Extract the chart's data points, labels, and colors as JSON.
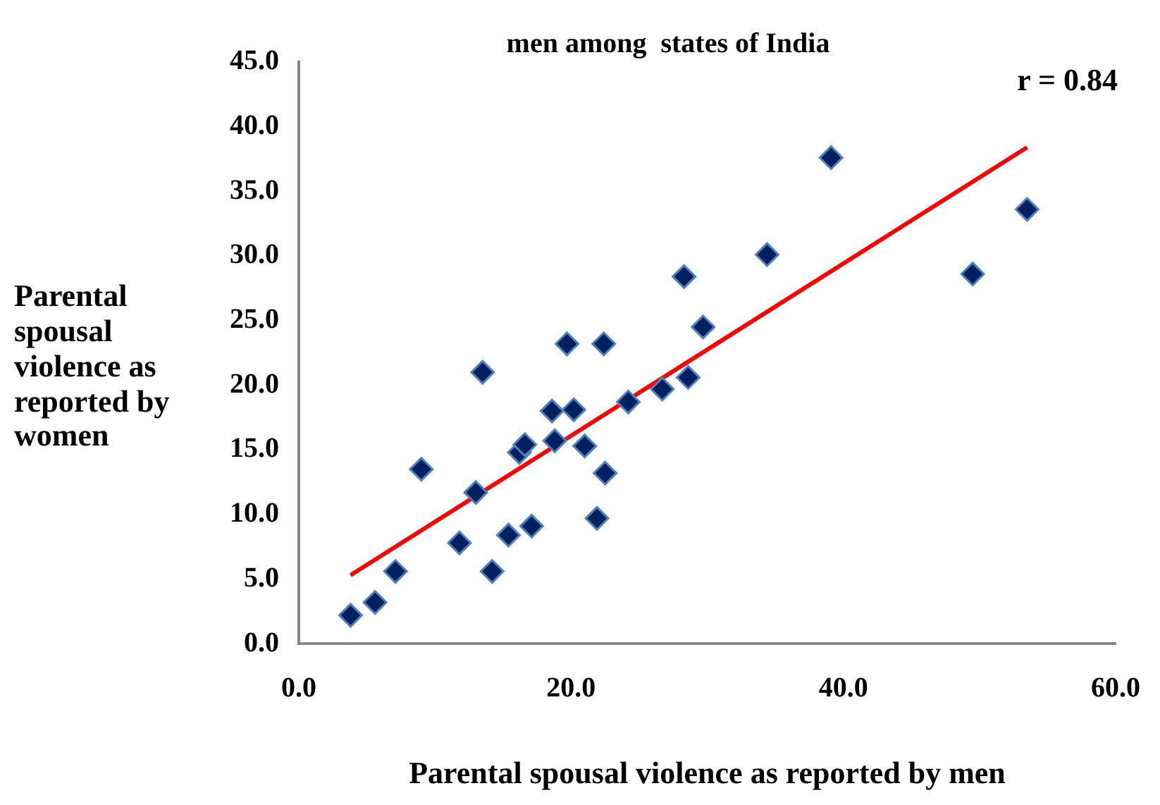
{
  "chart_data": {
    "type": "scatter",
    "title": "men among  states of India",
    "xlabel": "Parental spousal violence as reported by men",
    "ylabel": "Parental spousal violence as reported by women",
    "annotations": [
      "r = 0.84"
    ],
    "xlim": [
      0,
      60
    ],
    "xticks": [
      {
        "value": 0,
        "label": "0.0"
      },
      {
        "value": 20,
        "label": "20.0"
      },
      {
        "value": 40,
        "label": "40.0"
      },
      {
        "value": 60,
        "label": "60.0"
      }
    ],
    "ylim": [
      0,
      45
    ],
    "yticks": [
      {
        "value": 0,
        "label": "0.0"
      },
      {
        "value": 5,
        "label": "5.0"
      },
      {
        "value": 10,
        "label": "10.0"
      },
      {
        "value": 15,
        "label": "15.0"
      },
      {
        "value": 20,
        "label": "20.0"
      },
      {
        "value": 25,
        "label": "25.0"
      },
      {
        "value": 30,
        "label": "30.0"
      },
      {
        "value": 35,
        "label": "35.0"
      },
      {
        "value": 40,
        "label": "40.0"
      },
      {
        "value": 45,
        "label": "45.0"
      }
    ],
    "grid": false,
    "legend": false,
    "marker": "diamond",
    "series": [
      {
        "color": "#002060",
        "x": [
          3.8,
          5.6,
          7.1,
          9.0,
          11.8,
          13.0,
          13.5,
          14.2,
          15.4,
          17.1,
          16.2,
          16.6,
          18.6,
          18.8,
          19.7,
          20.2,
          21.0,
          21.9,
          22.4,
          22.5,
          24.2,
          26.7,
          28.3,
          28.6,
          29.7,
          34.4,
          39.1,
          49.5,
          53.5
        ],
        "values": [
          2.2,
          3.2,
          5.6,
          13.5,
          7.8,
          11.7,
          21.0,
          5.6,
          8.4,
          9.1,
          14.8,
          15.4,
          18.0,
          15.7,
          23.2,
          18.1,
          15.3,
          9.7,
          23.2,
          13.2,
          18.7,
          19.7,
          28.4,
          20.6,
          24.5,
          30.1,
          37.6,
          28.6,
          33.6
        ]
      },
      {
        "type": "line",
        "color": "#ff0000",
        "marker": "none",
        "x": [
          3.8,
          53.5
        ],
        "values": [
          5.3,
          38.4
        ]
      }
    ]
  }
}
